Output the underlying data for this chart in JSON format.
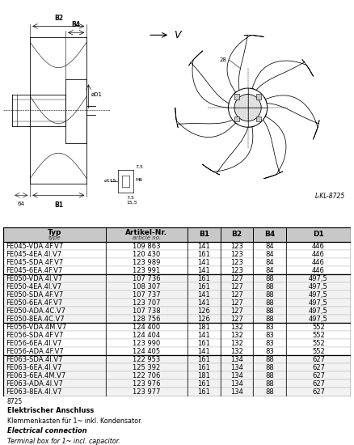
{
  "diagram_label": "L-KL-8725",
  "table_data": [
    [
      "FE045-VDA.4F.V7",
      "109 863",
      "141",
      "123",
      "84",
      "446"
    ],
    [
      "FE045-4EA.4I.V7",
      "120 430",
      "161",
      "123",
      "84",
      "446"
    ],
    [
      "FE045-SDA.4F.V7",
      "123 989",
      "141",
      "123",
      "84",
      "446"
    ],
    [
      "FE045-6EA.4F.V7",
      "123 991",
      "141",
      "123",
      "84",
      "446"
    ],
    [
      "FE050-VDA.4I.V7",
      "107 736",
      "161",
      "127",
      "88",
      "497,5"
    ],
    [
      "FE050-4EA.4I.V7",
      "108 307",
      "161",
      "127",
      "88",
      "497,5"
    ],
    [
      "FE050-SDA.4F.V7",
      "107 737",
      "141",
      "127",
      "88",
      "497,5"
    ],
    [
      "FE050-6EA.4F.V7",
      "123 707",
      "141",
      "127",
      "88",
      "497,5"
    ],
    [
      "FE050-ADA.4C.V7",
      "107 738",
      "126",
      "127",
      "88",
      "497,5"
    ],
    [
      "FE050-8EA.4C.V7",
      "128 756",
      "126",
      "127",
      "88",
      "497,5"
    ],
    [
      "FE056-VDA.4M.V7",
      "124 400",
      "181",
      "132",
      "83",
      "552"
    ],
    [
      "FE056-SDA.4F.V7",
      "124 404",
      "141",
      "132",
      "83",
      "552"
    ],
    [
      "FE056-6EA.4I.V7",
      "123 990",
      "161",
      "132",
      "83",
      "552"
    ],
    [
      "FE056-ADA.4F.V7",
      "124 405",
      "141",
      "132",
      "83",
      "552"
    ],
    [
      "FE063-SDA.4I.V7",
      "122 953",
      "161",
      "134",
      "88",
      "627"
    ],
    [
      "FE063-6EA.4I.V7",
      "125 392",
      "161",
      "134",
      "88",
      "627"
    ],
    [
      "FE063-6EA.4M.V7",
      "122 706",
      "181",
      "134",
      "88",
      "627"
    ],
    [
      "FE063-ADA.4I.V7",
      "123 976",
      "161",
      "134",
      "88",
      "627"
    ],
    [
      "FE063-8EA.4I.V7",
      "123 977",
      "161",
      "134",
      "88",
      "627"
    ]
  ],
  "group_separators": [
    4,
    10,
    14
  ],
  "footer_note": "8725",
  "electrical_connection_de_title": "Elektrischer Anschluss",
  "electrical_connection_de_body": "Klemmenkasten für 1~ inkl. Kondensator.",
  "electrical_connection_en_title": "Electrical connection",
  "electrical_connection_en_body": "Terminal box for 1~ incl. capacitor.",
  "bg_color": "#ffffff",
  "line_color": "#000000",
  "font_size_table": 6.0,
  "font_size_header": 6.5
}
